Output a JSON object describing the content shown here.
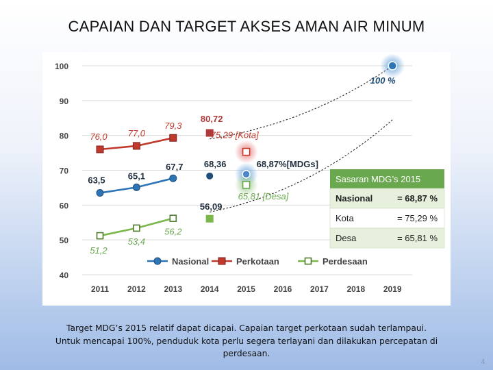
{
  "slide": {
    "title": "CAPAIAN DAN TARGET AKSES AMAN AIR MINUM",
    "caption_lines": [
      "Target MDG’s 2015 relatif dapat dicapai. Capaian target perkotaan sudah terlampaui.",
      "Untuk mencapai 100%, penduduk kota perlu segera terlayani dan dilakukan percepatan di",
      "perdesaan."
    ],
    "page_number": "4"
  },
  "chart_data": {
    "type": "line",
    "title": "",
    "xlabel": "",
    "ylabel": "",
    "categories": [
      "2011",
      "2012",
      "2013",
      "2014",
      "2015",
      "2016",
      "2017",
      "2018",
      "2019"
    ],
    "ylim": [
      40,
      100
    ],
    "yticks": [
      40,
      50,
      60,
      70,
      80,
      90,
      100
    ],
    "grid": true,
    "legend": "bottom",
    "series": [
      {
        "name": "Nasional",
        "color": "#2e75b6",
        "marker": "circle",
        "points": [
          {
            "x": "2011",
            "y": 63.5,
            "label": "63,5"
          },
          {
            "x": "2012",
            "y": 65.1,
            "label": "65,1"
          },
          {
            "x": "2013",
            "y": 67.7,
            "label": "67,7"
          }
        ]
      },
      {
        "name": "Perkotaan",
        "color": "#c0392b",
        "marker": "square",
        "points": [
          {
            "x": "2011",
            "y": 76.0,
            "label": "76,0"
          },
          {
            "x": "2012",
            "y": 77.0,
            "label": "77,0"
          },
          {
            "x": "2013",
            "y": 79.3,
            "label": "79,3"
          }
        ]
      },
      {
        "name": "Perdesaan",
        "color": "#7ab648",
        "marker": "square-open",
        "points": [
          {
            "x": "2011",
            "y": 51.2,
            "label": "51,2"
          },
          {
            "x": "2012",
            "y": 53.4,
            "label": "53,4"
          },
          {
            "x": "2013",
            "y": 56.2,
            "label": "56,2"
          }
        ]
      }
    ],
    "points_2014": [
      {
        "series": "Perkotaan",
        "x": "2014",
        "y": 80.72,
        "label": "80,72"
      },
      {
        "series": "Nasional",
        "x": "2014",
        "y": 68.36,
        "label": "68,36"
      },
      {
        "series": "Perdesaan",
        "x": "2014",
        "y": 56.09,
        "label": "56,09"
      }
    ],
    "targets_2015": [
      {
        "series": "Perkotaan",
        "x": "2015",
        "y": 75.29,
        "label": "75,29 [Kota]"
      },
      {
        "series": "Nasional",
        "x": "2015",
        "y": 68.87,
        "label": "68,87%[MDGs]"
      },
      {
        "series": "Perdesaan",
        "x": "2015",
        "y": 65.81,
        "label": "65,81 [Desa]"
      }
    ],
    "target_2019": {
      "x": "2019",
      "y": 100,
      "label": "100 %"
    },
    "trend_lines": [
      {
        "name": "trend-upper",
        "from": {
          "x": "2014",
          "y": 79
        },
        "to": {
          "x": "2019",
          "y": 100
        }
      },
      {
        "name": "trend-lower",
        "from": {
          "x": "2014",
          "y": 58
        },
        "to": {
          "x": "2019",
          "y": 84.5
        }
      }
    ],
    "target_box": {
      "title": "Sasaran MDG’s 2015",
      "rows": [
        {
          "label": "Nasional",
          "value": "= 68,87 %"
        },
        {
          "label": "Kota",
          "value": "= 75,29 %"
        },
        {
          "label": "Desa",
          "value": "= 65,81 %"
        }
      ]
    }
  }
}
